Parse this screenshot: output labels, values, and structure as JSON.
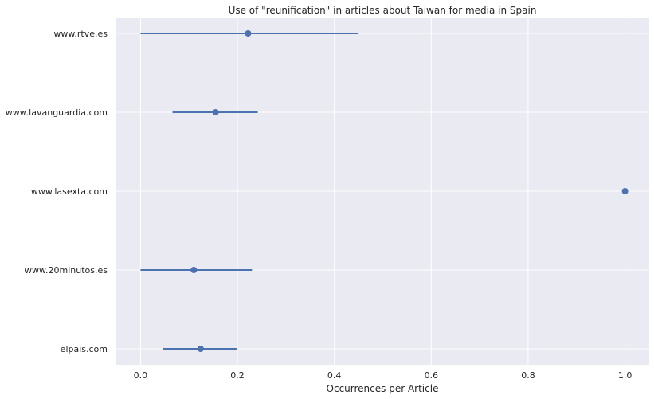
{
  "chart_data": {
    "type": "scatter",
    "title": "Use of \"reunification\" in articles about Taiwan for media in Spain",
    "xlabel": "Occurrences per Article",
    "ylabel": "",
    "xlim": [
      -0.05,
      1.05
    ],
    "x_ticks": [
      "0.0",
      "0.2",
      "0.4",
      "0.6",
      "0.8",
      "1.0"
    ],
    "x_tick_values": [
      0.0,
      0.2,
      0.4,
      0.6,
      0.8,
      1.0
    ],
    "grid": true,
    "background_color": "#eaeaf2",
    "grid_color": "#ffffff",
    "series_color": "#4c72b0",
    "categories": [
      "www.rtve.es",
      "www.lavanguardia.com",
      "www.lasexta.com",
      "www.20minutos.es",
      "elpais.com"
    ],
    "points": [
      {
        "category": "www.rtve.es",
        "value": 0.222,
        "ci_low": 0.0,
        "ci_high": 0.45
      },
      {
        "category": "www.lavanguardia.com",
        "value": 0.155,
        "ci_low": 0.066,
        "ci_high": 0.242
      },
      {
        "category": "www.lasexta.com",
        "value": 1.0,
        "ci_low": 1.0,
        "ci_high": 1.0
      },
      {
        "category": "www.20minutos.es",
        "value": 0.11,
        "ci_low": 0.0,
        "ci_high": 0.23
      },
      {
        "category": "elpais.com",
        "value": 0.124,
        "ci_low": 0.046,
        "ci_high": 0.2
      }
    ]
  }
}
